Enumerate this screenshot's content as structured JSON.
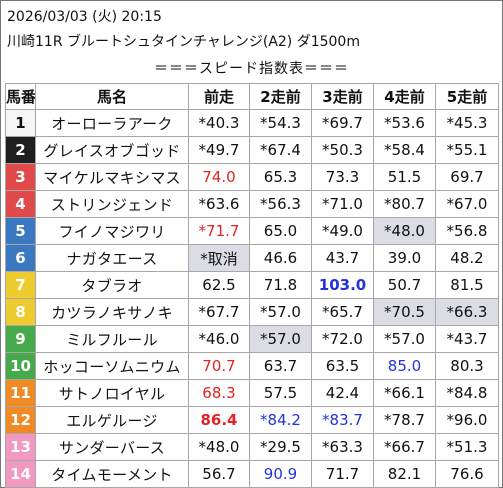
{
  "header": {
    "datetime": "2026/03/03 (火) 20:15",
    "race": "川崎11R ブルートシュタインチャレンジ(A2) ダ1500m"
  },
  "section_title": "＝＝＝スピード指数表＝＝＝",
  "columns": [
    "馬番",
    "馬名",
    "前走",
    "2走前",
    "3走前",
    "4走前",
    "5走前"
  ],
  "colors": {
    "w1": "#f6f6f6",
    "w2": "#1f1f1f",
    "w3": "#e04a4a",
    "w4": "#3a78c2",
    "w5": "#eecb2e",
    "w6": "#46a94c",
    "w7": "#f08a24",
    "w8": "#f199c0",
    "w5_text": "#ffffff",
    "w1_text": "#111111",
    "red": "#e32222",
    "blue": "#2233dd",
    "highlight": "#dcdde4"
  },
  "rows": [
    {
      "num": "1",
      "name": "オーローラアーク",
      "v": [
        "*40.3",
        "*54.3",
        "*69.7",
        "*53.6",
        "*45.3"
      ]
    },
    {
      "num": "2",
      "name": "グレイスオブゴッド",
      "v": [
        "*49.7",
        "*67.4",
        "*50.3",
        "*58.4",
        "*55.1"
      ]
    },
    {
      "num": "3",
      "name": "マイケルマキシマス",
      "v": [
        "74.0",
        "65.3",
        "73.3",
        "51.5",
        "69.7"
      ]
    },
    {
      "num": "4",
      "name": "ストリンジェンド",
      "v": [
        "*63.6",
        "*56.3",
        "*71.0",
        "*80.7",
        "*67.0"
      ]
    },
    {
      "num": "5",
      "name": "フイノマジワリ",
      "v": [
        "*71.7",
        "65.0",
        "*49.0",
        "*48.0",
        "*56.8"
      ]
    },
    {
      "num": "6",
      "name": "ナガタエース",
      "v": [
        "*取消",
        "46.6",
        "43.7",
        "39.0",
        "48.2"
      ]
    },
    {
      "num": "7",
      "name": "タブラオ",
      "v": [
        "62.5",
        "71.8",
        "103.0",
        "50.7",
        "81.5"
      ]
    },
    {
      "num": "8",
      "name": "カツラノキサノキ",
      "v": [
        "*67.7",
        "*57.0",
        "*65.7",
        "*70.5",
        "*66.3"
      ]
    },
    {
      "num": "9",
      "name": "ミルフルール",
      "v": [
        "*46.0",
        "*57.0",
        "*72.0",
        "*57.0",
        "*43.7"
      ]
    },
    {
      "num": "10",
      "name": "ホッコーソムニウム",
      "v": [
        "70.7",
        "63.7",
        "63.5",
        "85.0",
        "80.3"
      ]
    },
    {
      "num": "11",
      "name": "サトノロイヤル",
      "v": [
        "68.3",
        "57.5",
        "42.4",
        "*66.1",
        "*84.8"
      ]
    },
    {
      "num": "12",
      "name": "エルゲルージ",
      "v": [
        "86.4",
        "*84.2",
        "*83.7",
        "*78.7",
        "*96.0"
      ]
    },
    {
      "num": "13",
      "name": "サンダーバース",
      "v": [
        "*48.0",
        "*29.5",
        "*63.3",
        "*66.7",
        "*51.3"
      ]
    },
    {
      "num": "14",
      "name": "タイムモーメント",
      "v": [
        "56.7",
        "90.9",
        "71.7",
        "82.1",
        "76.6"
      ]
    }
  ]
}
